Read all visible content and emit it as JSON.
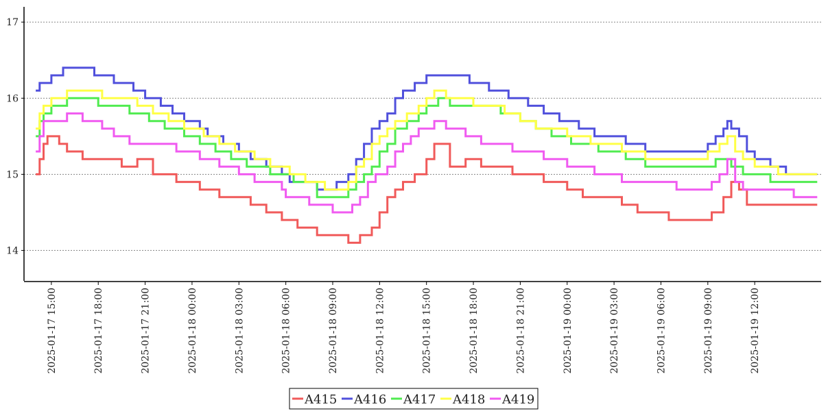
{
  "chart_data": {
    "type": "line",
    "title": "",
    "xlabel": "",
    "ylabel": "",
    "xlim": [
      "2025-01-17 13:15",
      "2025-01-19 16:15"
    ],
    "ylim": [
      13.6,
      17.2
    ],
    "y_ticks": [
      14,
      15,
      16,
      17
    ],
    "x_ticks": [
      "2025-01-17 15:00",
      "2025-01-17 18:00",
      "2025-01-17 21:00",
      "2025-01-18 00:00",
      "2025-01-18 03:00",
      "2025-01-18 06:00",
      "2025-01-18 09:00",
      "2025-01-18 12:00",
      "2025-01-18 15:00",
      "2025-01-18 18:00",
      "2025-01-18 21:00",
      "2025-01-19 00:00",
      "2025-01-19 03:00",
      "2025-01-19 06:00",
      "2025-01-19 09:00",
      "2025-01-19 12:00"
    ],
    "grid": "horizontal dotted",
    "legend_position": "bottom-center",
    "series": [
      {
        "name": "A415",
        "color": "#f05a5a",
        "points": [
          [
            "2025-01-17 14:00",
            15.0
          ],
          [
            "2025-01-17 14:15",
            15.2
          ],
          [
            "2025-01-17 14:30",
            15.4
          ],
          [
            "2025-01-17 14:45",
            15.5
          ],
          [
            "2025-01-17 15:30",
            15.4
          ],
          [
            "2025-01-17 16:00",
            15.3
          ],
          [
            "2025-01-17 17:00",
            15.2
          ],
          [
            "2025-01-17 18:00",
            15.2
          ],
          [
            "2025-01-17 19:30",
            15.1
          ],
          [
            "2025-01-17 20:30",
            15.2
          ],
          [
            "2025-01-17 21:30",
            15.0
          ],
          [
            "2025-01-17 23:00",
            14.9
          ],
          [
            "2025-01-18 00:30",
            14.8
          ],
          [
            "2025-01-18 01:45",
            14.7
          ],
          [
            "2025-01-18 02:30",
            14.7
          ],
          [
            "2025-01-18 03:45",
            14.6
          ],
          [
            "2025-01-18 04:45",
            14.5
          ],
          [
            "2025-01-18 05:45",
            14.4
          ],
          [
            "2025-01-18 06:45",
            14.3
          ],
          [
            "2025-01-18 08:00",
            14.2
          ],
          [
            "2025-01-18 09:15",
            14.2
          ],
          [
            "2025-01-18 10:00",
            14.1
          ],
          [
            "2025-01-18 10:45",
            14.2
          ],
          [
            "2025-01-18 11:30",
            14.3
          ],
          [
            "2025-01-18 12:00",
            14.5
          ],
          [
            "2025-01-18 12:30",
            14.7
          ],
          [
            "2025-01-18 13:00",
            14.8
          ],
          [
            "2025-01-18 13:30",
            14.9
          ],
          [
            "2025-01-18 14:15",
            15.0
          ],
          [
            "2025-01-18 15:00",
            15.2
          ],
          [
            "2025-01-18 15:30",
            15.4
          ],
          [
            "2025-01-18 16:00",
            15.4
          ],
          [
            "2025-01-18 16:30",
            15.1
          ],
          [
            "2025-01-18 17:30",
            15.2
          ],
          [
            "2025-01-18 18:30",
            15.1
          ],
          [
            "2025-01-18 19:30",
            15.1
          ],
          [
            "2025-01-18 20:30",
            15.0
          ],
          [
            "2025-01-18 21:30",
            15.0
          ],
          [
            "2025-01-18 22:30",
            14.9
          ],
          [
            "2025-01-19 00:00",
            14.8
          ],
          [
            "2025-01-19 01:00",
            14.7
          ],
          [
            "2025-01-19 02:00",
            14.7
          ],
          [
            "2025-01-19 03:30",
            14.6
          ],
          [
            "2025-01-19 04:30",
            14.5
          ],
          [
            "2025-01-19 05:45",
            14.5
          ],
          [
            "2025-01-19 06:30",
            14.4
          ],
          [
            "2025-01-19 08:30",
            14.4
          ],
          [
            "2025-01-19 09:15",
            14.5
          ],
          [
            "2025-01-19 10:00",
            14.7
          ],
          [
            "2025-01-19 10:30",
            14.9
          ],
          [
            "2025-01-19 11:00",
            14.8
          ],
          [
            "2025-01-19 11:30",
            14.6
          ],
          [
            "2025-01-19 13:00",
            14.6
          ],
          [
            "2025-01-19 14:00",
            14.6
          ],
          [
            "2025-01-19 16:00",
            14.6
          ]
        ]
      },
      {
        "name": "A416",
        "color": "#5050dc",
        "points": [
          [
            "2025-01-17 14:00",
            16.1
          ],
          [
            "2025-01-17 14:15",
            16.2
          ],
          [
            "2025-01-17 15:00",
            16.3
          ],
          [
            "2025-01-17 15:45",
            16.4
          ],
          [
            "2025-01-17 17:45",
            16.3
          ],
          [
            "2025-01-17 19:00",
            16.2
          ],
          [
            "2025-01-17 20:15",
            16.1
          ],
          [
            "2025-01-17 21:00",
            16.0
          ],
          [
            "2025-01-17 22:00",
            15.9
          ],
          [
            "2025-01-17 22:45",
            15.8
          ],
          [
            "2025-01-17 23:30",
            15.7
          ],
          [
            "2025-01-18 00:30",
            15.6
          ],
          [
            "2025-01-18 01:00",
            15.5
          ],
          [
            "2025-01-18 02:00",
            15.4
          ],
          [
            "2025-01-18 03:00",
            15.3
          ],
          [
            "2025-01-18 03:45",
            15.2
          ],
          [
            "2025-01-18 04:45",
            15.1
          ],
          [
            "2025-01-18 05:45",
            15.0
          ],
          [
            "2025-01-18 06:15",
            14.9
          ],
          [
            "2025-01-18 08:00",
            14.8
          ],
          [
            "2025-01-18 09:15",
            14.9
          ],
          [
            "2025-01-18 10:00",
            15.0
          ],
          [
            "2025-01-18 10:30",
            15.2
          ],
          [
            "2025-01-18 11:00",
            15.4
          ],
          [
            "2025-01-18 11:30",
            15.6
          ],
          [
            "2025-01-18 12:00",
            15.7
          ],
          [
            "2025-01-18 12:30",
            15.8
          ],
          [
            "2025-01-18 13:00",
            16.0
          ],
          [
            "2025-01-18 13:30",
            16.1
          ],
          [
            "2025-01-18 14:15",
            16.2
          ],
          [
            "2025-01-18 15:00",
            16.3
          ],
          [
            "2025-01-18 17:45",
            16.2
          ],
          [
            "2025-01-18 19:00",
            16.1
          ],
          [
            "2025-01-18 20:15",
            16.0
          ],
          [
            "2025-01-18 21:30",
            15.9
          ],
          [
            "2025-01-18 22:30",
            15.8
          ],
          [
            "2025-01-18 23:30",
            15.7
          ],
          [
            "2025-01-19 00:45",
            15.6
          ],
          [
            "2025-01-19 01:45",
            15.5
          ],
          [
            "2025-01-19 03:45",
            15.4
          ],
          [
            "2025-01-19 05:00",
            15.3
          ],
          [
            "2025-01-19 09:00",
            15.4
          ],
          [
            "2025-01-19 09:30",
            15.5
          ],
          [
            "2025-01-19 10:00",
            15.6
          ],
          [
            "2025-01-19 10:15",
            15.7
          ],
          [
            "2025-01-19 10:30",
            15.6
          ],
          [
            "2025-01-19 11:00",
            15.5
          ],
          [
            "2025-01-19 11:30",
            15.3
          ],
          [
            "2025-01-19 12:00",
            15.2
          ],
          [
            "2025-01-19 13:00",
            15.1
          ],
          [
            "2025-01-19 14:00",
            15.0
          ],
          [
            "2025-01-19 16:00",
            15.0
          ]
        ]
      },
      {
        "name": "A417",
        "color": "#50eb50",
        "points": [
          [
            "2025-01-17 14:00",
            15.5
          ],
          [
            "2025-01-17 14:15",
            15.7
          ],
          [
            "2025-01-17 14:30",
            15.8
          ],
          [
            "2025-01-17 15:00",
            15.9
          ],
          [
            "2025-01-17 16:00",
            16.0
          ],
          [
            "2025-01-17 18:00",
            15.9
          ],
          [
            "2025-01-17 20:00",
            15.8
          ],
          [
            "2025-01-17 21:15",
            15.7
          ],
          [
            "2025-01-17 22:15",
            15.6
          ],
          [
            "2025-01-17 23:30",
            15.5
          ],
          [
            "2025-01-18 00:30",
            15.4
          ],
          [
            "2025-01-18 01:30",
            15.3
          ],
          [
            "2025-01-18 02:30",
            15.2
          ],
          [
            "2025-01-18 03:30",
            15.1
          ],
          [
            "2025-01-18 05:00",
            15.0
          ],
          [
            "2025-01-18 06:30",
            14.9
          ],
          [
            "2025-01-18 08:00",
            14.7
          ],
          [
            "2025-01-18 10:00",
            14.8
          ],
          [
            "2025-01-18 10:30",
            14.9
          ],
          [
            "2025-01-18 11:00",
            15.0
          ],
          [
            "2025-01-18 11:30",
            15.1
          ],
          [
            "2025-01-18 12:00",
            15.3
          ],
          [
            "2025-01-18 12:30",
            15.4
          ],
          [
            "2025-01-18 13:00",
            15.6
          ],
          [
            "2025-01-18 13:45",
            15.7
          ],
          [
            "2025-01-18 14:30",
            15.8
          ],
          [
            "2025-01-18 15:00",
            15.9
          ],
          [
            "2025-01-18 15:45",
            16.0
          ],
          [
            "2025-01-18 16:30",
            15.9
          ],
          [
            "2025-01-18 19:45",
            15.8
          ],
          [
            "2025-01-18 21:00",
            15.7
          ],
          [
            "2025-01-18 22:00",
            15.6
          ],
          [
            "2025-01-18 23:00",
            15.5
          ],
          [
            "2025-01-19 00:15",
            15.4
          ],
          [
            "2025-01-19 02:00",
            15.3
          ],
          [
            "2025-01-19 03:45",
            15.2
          ],
          [
            "2025-01-19 05:00",
            15.1
          ],
          [
            "2025-01-19 09:30",
            15.2
          ],
          [
            "2025-01-19 10:30",
            15.1
          ],
          [
            "2025-01-19 11:15",
            15.0
          ],
          [
            "2025-01-19 13:00",
            14.9
          ],
          [
            "2025-01-19 16:00",
            14.9
          ]
        ]
      },
      {
        "name": "A418",
        "color": "#ffff46",
        "points": [
          [
            "2025-01-17 14:00",
            15.6
          ],
          [
            "2025-01-17 14:15",
            15.8
          ],
          [
            "2025-01-17 14:30",
            15.9
          ],
          [
            "2025-01-17 15:00",
            16.0
          ],
          [
            "2025-01-17 16:00",
            16.1
          ],
          [
            "2025-01-17 18:15",
            16.0
          ],
          [
            "2025-01-17 20:30",
            15.9
          ],
          [
            "2025-01-17 21:30",
            15.8
          ],
          [
            "2025-01-17 22:30",
            15.7
          ],
          [
            "2025-01-17 23:30",
            15.6
          ],
          [
            "2025-01-18 00:45",
            15.5
          ],
          [
            "2025-01-18 01:45",
            15.4
          ],
          [
            "2025-01-18 02:45",
            15.3
          ],
          [
            "2025-01-18 04:00",
            15.2
          ],
          [
            "2025-01-18 05:00",
            15.1
          ],
          [
            "2025-01-18 06:15",
            15.0
          ],
          [
            "2025-01-18 07:15",
            14.9
          ],
          [
            "2025-01-18 08:30",
            14.8
          ],
          [
            "2025-01-18 10:00",
            14.9
          ],
          [
            "2025-01-18 10:30",
            15.1
          ],
          [
            "2025-01-18 11:00",
            15.2
          ],
          [
            "2025-01-18 11:30",
            15.4
          ],
          [
            "2025-01-18 12:00",
            15.5
          ],
          [
            "2025-01-18 12:30",
            15.6
          ],
          [
            "2025-01-18 13:00",
            15.7
          ],
          [
            "2025-01-18 13:45",
            15.8
          ],
          [
            "2025-01-18 14:30",
            15.9
          ],
          [
            "2025-01-18 15:00",
            16.0
          ],
          [
            "2025-01-18 15:30",
            16.1
          ],
          [
            "2025-01-18 16:15",
            16.0
          ],
          [
            "2025-01-18 18:00",
            15.9
          ],
          [
            "2025-01-18 20:00",
            15.8
          ],
          [
            "2025-01-18 21:00",
            15.7
          ],
          [
            "2025-01-18 22:00",
            15.6
          ],
          [
            "2025-01-19 00:00",
            15.5
          ],
          [
            "2025-01-19 01:30",
            15.4
          ],
          [
            "2025-01-19 03:30",
            15.3
          ],
          [
            "2025-01-19 05:00",
            15.2
          ],
          [
            "2025-01-19 09:00",
            15.3
          ],
          [
            "2025-01-19 09:45",
            15.4
          ],
          [
            "2025-01-19 10:15",
            15.5
          ],
          [
            "2025-01-19 10:45",
            15.3
          ],
          [
            "2025-01-19 11:15",
            15.2
          ],
          [
            "2025-01-19 12:00",
            15.1
          ],
          [
            "2025-01-19 13:30",
            15.0
          ],
          [
            "2025-01-19 16:00",
            15.0
          ]
        ]
      },
      {
        "name": "A419",
        "color": "#f05af0",
        "points": [
          [
            "2025-01-17 14:00",
            15.3
          ],
          [
            "2025-01-17 14:15",
            15.5
          ],
          [
            "2025-01-17 14:30",
            15.7
          ],
          [
            "2025-01-17 15:30",
            15.7
          ],
          [
            "2025-01-17 16:00",
            15.8
          ],
          [
            "2025-01-17 17:00",
            15.7
          ],
          [
            "2025-01-17 18:15",
            15.6
          ],
          [
            "2025-01-17 19:00",
            15.5
          ],
          [
            "2025-01-17 20:00",
            15.4
          ],
          [
            "2025-01-17 22:00",
            15.4
          ],
          [
            "2025-01-17 23:00",
            15.3
          ],
          [
            "2025-01-18 00:30",
            15.2
          ],
          [
            "2025-01-18 01:45",
            15.1
          ],
          [
            "2025-01-18 03:00",
            15.0
          ],
          [
            "2025-01-18 04:00",
            14.9
          ],
          [
            "2025-01-18 05:45",
            14.8
          ],
          [
            "2025-01-18 06:00",
            14.7
          ],
          [
            "2025-01-18 07:30",
            14.6
          ],
          [
            "2025-01-18 09:00",
            14.5
          ],
          [
            "2025-01-18 10:15",
            14.6
          ],
          [
            "2025-01-18 10:45",
            14.7
          ],
          [
            "2025-01-18 11:15",
            14.9
          ],
          [
            "2025-01-18 11:45",
            15.0
          ],
          [
            "2025-01-18 12:30",
            15.1
          ],
          [
            "2025-01-18 13:00",
            15.3
          ],
          [
            "2025-01-18 13:30",
            15.4
          ],
          [
            "2025-01-18 14:00",
            15.5
          ],
          [
            "2025-01-18 14:30",
            15.6
          ],
          [
            "2025-01-18 15:30",
            15.7
          ],
          [
            "2025-01-18 16:15",
            15.6
          ],
          [
            "2025-01-18 17:30",
            15.5
          ],
          [
            "2025-01-18 18:30",
            15.4
          ],
          [
            "2025-01-18 20:30",
            15.3
          ],
          [
            "2025-01-18 22:30",
            15.2
          ],
          [
            "2025-01-19 00:00",
            15.1
          ],
          [
            "2025-01-19 01:45",
            15.0
          ],
          [
            "2025-01-19 03:30",
            14.9
          ],
          [
            "2025-01-19 07:00",
            14.8
          ],
          [
            "2025-01-19 09:15",
            14.9
          ],
          [
            "2025-01-19 09:45",
            15.0
          ],
          [
            "2025-01-19 10:15",
            15.2
          ],
          [
            "2025-01-19 10:45",
            14.9
          ],
          [
            "2025-01-19 11:15",
            14.8
          ],
          [
            "2025-01-19 14:00",
            14.8
          ],
          [
            "2025-01-19 14:30",
            14.7
          ],
          [
            "2025-01-19 16:00",
            14.7
          ]
        ]
      }
    ]
  }
}
